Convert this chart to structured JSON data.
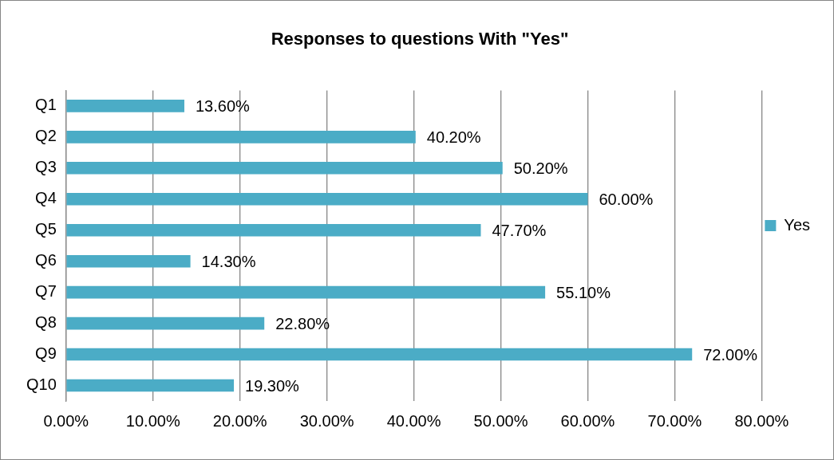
{
  "chart_data": {
    "type": "bar",
    "orientation": "horizontal",
    "title": "Responses to questions With \"Yes\"",
    "categories": [
      "Q1",
      "Q2",
      "Q3",
      "Q4",
      "Q5",
      "Q6",
      "Q7",
      "Q8",
      "Q9",
      "Q10"
    ],
    "series": [
      {
        "name": "Yes",
        "color": "#4bacc6",
        "values": [
          13.6,
          40.2,
          50.2,
          60.0,
          47.7,
          14.3,
          55.1,
          22.8,
          72.0,
          19.3
        ],
        "value_labels": [
          "13.60%",
          "40.20%",
          "50.20%",
          "60.00%",
          "47.70%",
          "14.30%",
          "55.10%",
          "22.80%",
          "72.00%",
          "19.30%"
        ]
      }
    ],
    "xlim": [
      0,
      80
    ],
    "xticks": [
      {
        "value": 0,
        "label": "0.00%"
      },
      {
        "value": 10,
        "label": "10.00%"
      },
      {
        "value": 20,
        "label": "20.00%"
      },
      {
        "value": 30,
        "label": "30.00%"
      },
      {
        "value": 40,
        "label": "40.00%"
      },
      {
        "value": 50,
        "label": "50.00%"
      },
      {
        "value": 60,
        "label": "60.00%"
      },
      {
        "value": 70,
        "label": "70.00%"
      },
      {
        "value": 80,
        "label": "80.00%"
      }
    ],
    "grid": "x",
    "legend": "right"
  }
}
